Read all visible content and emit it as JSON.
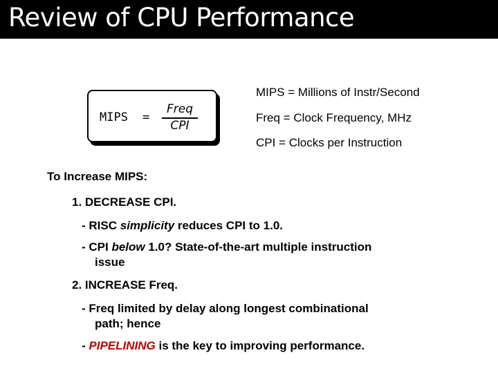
{
  "title": "Review of CPU Performance",
  "formula": {
    "lhs": "MIPS",
    "equals": "=",
    "numerator": "Freq",
    "denominator": "CPI"
  },
  "definitions": [
    "MIPS = Millions of Instr/Second",
    "Freq = Clock Frequency, MHz",
    "CPI = Clocks per Instruction"
  ],
  "content": {
    "heading": "To Increase MIPS:",
    "item1": "1. DECREASE CPI.",
    "item1_sub1": {
      "before": "- RISC ",
      "emph": "simplicity",
      "after": " reduces CPI to 1.0."
    },
    "item1_sub2": {
      "before": "- CPI ",
      "emph": "below",
      "after": " 1.0? State-of-the-art multiple instruction",
      "continuation": "issue"
    },
    "item2": "2. INCREASE Freq.",
    "item2_sub1": {
      "line1": "- Freq limited by delay along longest combinational",
      "line2": "path; hence"
    },
    "item2_sub2": {
      "before": "- ",
      "highlight": "PIPELINING",
      "after": " is the key to improving performance."
    }
  },
  "colors": {
    "title_bar": "#000000",
    "title_text": "#ffffff",
    "highlight": "#c00000"
  }
}
